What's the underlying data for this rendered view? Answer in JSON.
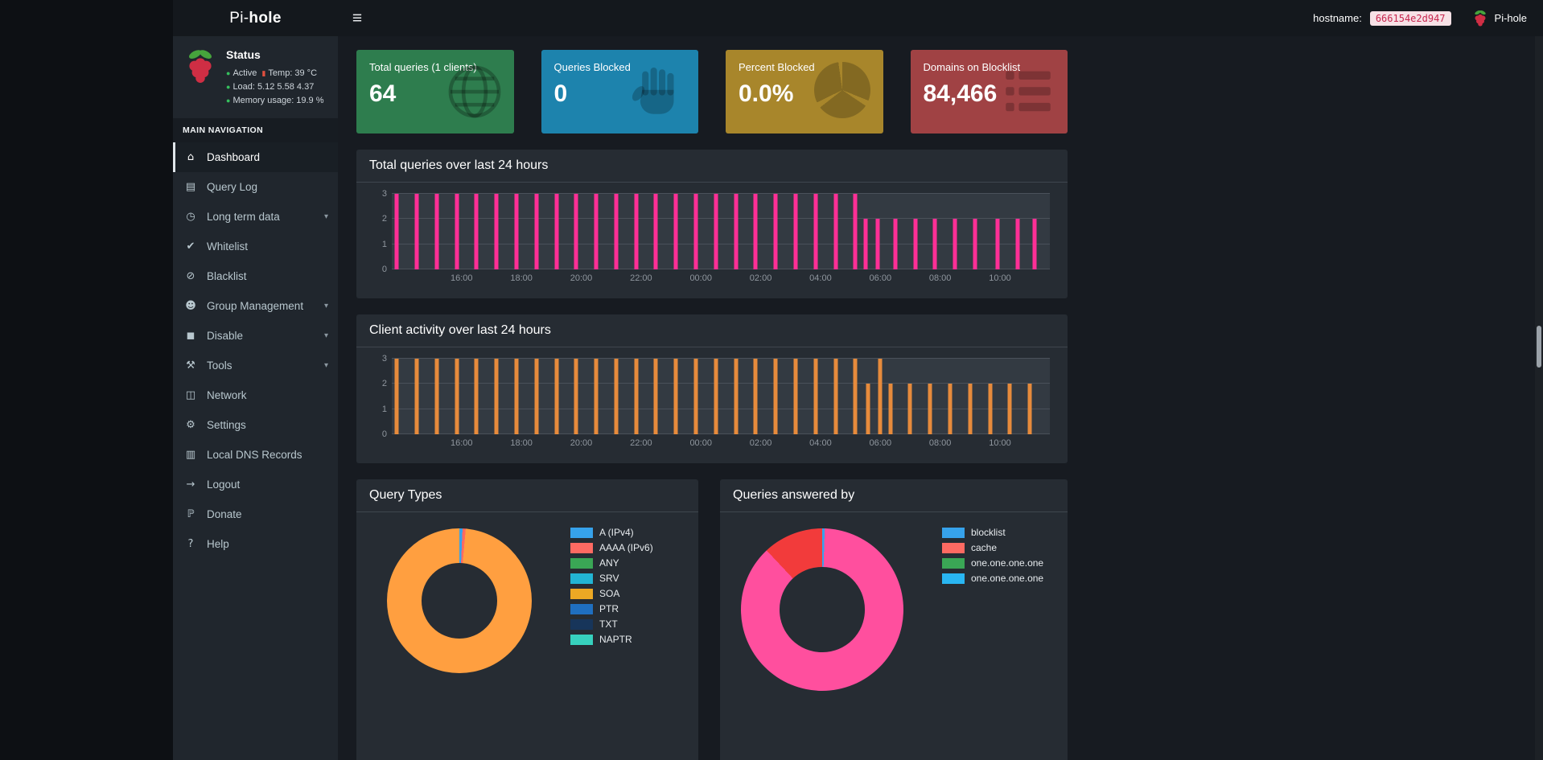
{
  "logo": {
    "prefix": "Pi-",
    "bold": "hole"
  },
  "topbar": {
    "hamburger": "≡",
    "hostname_label": "hostname:",
    "hostname_value": "666154e2d947",
    "brand": "Pi-hole"
  },
  "sidebar": {
    "status": {
      "title": "Status",
      "active_label": "Active",
      "temp_label": "Temp:",
      "temp_value": "39 °C",
      "load_label": "Load:",
      "load_value": "5.12  5.58  4.37",
      "memory_label": "Memory usage:",
      "memory_value": "19.9 %"
    },
    "nav_header": "MAIN NAVIGATION",
    "items": [
      {
        "label": "Dashboard",
        "icon": "home-icon",
        "glyph": "⌂",
        "active": true,
        "chevron": false
      },
      {
        "label": "Query Log",
        "icon": "file-text-icon",
        "glyph": "▤",
        "active": false,
        "chevron": false
      },
      {
        "label": "Long term data",
        "icon": "clock-icon",
        "glyph": "◷",
        "active": false,
        "chevron": true
      },
      {
        "label": "Whitelist",
        "icon": "check-circle-icon",
        "glyph": "✔",
        "active": false,
        "chevron": false
      },
      {
        "label": "Blacklist",
        "icon": "ban-icon",
        "glyph": "⊘",
        "active": false,
        "chevron": false
      },
      {
        "label": "Group Management",
        "icon": "users-icon",
        "glyph": "☻",
        "active": false,
        "chevron": true
      },
      {
        "label": "Disable",
        "icon": "stop-icon",
        "glyph": "◼",
        "active": false,
        "chevron": true
      },
      {
        "label": "Tools",
        "icon": "tools-icon",
        "glyph": "⚒",
        "active": false,
        "chevron": true
      },
      {
        "label": "Network",
        "icon": "network-icon",
        "glyph": "◫",
        "active": false,
        "chevron": false
      },
      {
        "label": "Settings",
        "icon": "gear-icon",
        "glyph": "⚙",
        "active": false,
        "chevron": false
      },
      {
        "label": "Local DNS Records",
        "icon": "address-book-icon",
        "glyph": "▥",
        "active": false,
        "chevron": false
      },
      {
        "label": "Logout",
        "icon": "logout-icon",
        "glyph": "→",
        "active": false,
        "chevron": false
      },
      {
        "label": "Donate",
        "icon": "paypal-icon",
        "glyph": "ℙ",
        "active": false,
        "chevron": false
      },
      {
        "label": "Help",
        "icon": "question-icon",
        "glyph": "?",
        "active": false,
        "chevron": false
      }
    ]
  },
  "cards": [
    {
      "title": "Total queries (1 clients)",
      "value": "64",
      "color": "#2e7d4e",
      "icon": "globe-icon"
    },
    {
      "title": "Queries Blocked",
      "value": "0",
      "color": "#1d83ad",
      "icon": "hand-icon"
    },
    {
      "title": "Percent Blocked",
      "value": "0.0%",
      "color": "#a8862b",
      "icon": "pie-chart-icon"
    },
    {
      "title": "Domains on Blocklist",
      "value": "84,466",
      "color": "#a04244",
      "icon": "list-icon"
    }
  ],
  "chart_data": [
    {
      "id": "total_queries",
      "type": "bar",
      "title": "Total queries over last 24 hours",
      "series_color": "#ff2f96",
      "ylim": [
        0,
        3
      ],
      "yticks": [
        0,
        1,
        2,
        3
      ],
      "x_window_minutes": 1320,
      "x_start_time": "13:40",
      "xticks": [
        {
          "label": "16:00",
          "m": 140
        },
        {
          "label": "18:00",
          "m": 260
        },
        {
          "label": "20:00",
          "m": 380
        },
        {
          "label": "22:00",
          "m": 500
        },
        {
          "label": "00:00",
          "m": 620
        },
        {
          "label": "02:00",
          "m": 740
        },
        {
          "label": "04:00",
          "m": 860
        },
        {
          "label": "06:00",
          "m": 980
        },
        {
          "label": "08:00",
          "m": 1100
        },
        {
          "label": "10:00",
          "m": 1220
        }
      ],
      "bars": [
        [
          10,
          3
        ],
        [
          50,
          3
        ],
        [
          90,
          3
        ],
        [
          130,
          3
        ],
        [
          170,
          3
        ],
        [
          210,
          3
        ],
        [
          250,
          3
        ],
        [
          290,
          3
        ],
        [
          330,
          3
        ],
        [
          370,
          3
        ],
        [
          410,
          3
        ],
        [
          450,
          3
        ],
        [
          490,
          3
        ],
        [
          530,
          3
        ],
        [
          570,
          3
        ],
        [
          610,
          3
        ],
        [
          650,
          3
        ],
        [
          690,
          3
        ],
        [
          730,
          3
        ],
        [
          770,
          3
        ],
        [
          810,
          3
        ],
        [
          850,
          3
        ],
        [
          890,
          3
        ],
        [
          930,
          3
        ],
        [
          950,
          2
        ],
        [
          975,
          2
        ],
        [
          1010,
          2
        ],
        [
          1050,
          2
        ],
        [
          1090,
          2
        ],
        [
          1130,
          2
        ],
        [
          1170,
          2
        ],
        [
          1215,
          2
        ],
        [
          1255,
          2
        ],
        [
          1290,
          2
        ]
      ]
    },
    {
      "id": "client_activity",
      "type": "bar",
      "title": "Client activity over last 24 hours",
      "series_color": "#e78b3c",
      "ylim": [
        0,
        3
      ],
      "yticks": [
        0,
        1,
        2,
        3
      ],
      "x_window_minutes": 1320,
      "x_start_time": "13:40",
      "xticks": [
        {
          "label": "16:00",
          "m": 140
        },
        {
          "label": "18:00",
          "m": 260
        },
        {
          "label": "20:00",
          "m": 380
        },
        {
          "label": "22:00",
          "m": 500
        },
        {
          "label": "00:00",
          "m": 620
        },
        {
          "label": "02:00",
          "m": 740
        },
        {
          "label": "04:00",
          "m": 860
        },
        {
          "label": "06:00",
          "m": 980
        },
        {
          "label": "08:00",
          "m": 1100
        },
        {
          "label": "10:00",
          "m": 1220
        }
      ],
      "bars": [
        [
          10,
          3
        ],
        [
          50,
          3
        ],
        [
          90,
          3
        ],
        [
          130,
          3
        ],
        [
          170,
          3
        ],
        [
          210,
          3
        ],
        [
          250,
          3
        ],
        [
          290,
          3
        ],
        [
          330,
          3
        ],
        [
          370,
          3
        ],
        [
          410,
          3
        ],
        [
          450,
          3
        ],
        [
          490,
          3
        ],
        [
          530,
          3
        ],
        [
          570,
          3
        ],
        [
          610,
          3
        ],
        [
          650,
          3
        ],
        [
          690,
          3
        ],
        [
          730,
          3
        ],
        [
          770,
          3
        ],
        [
          810,
          3
        ],
        [
          850,
          3
        ],
        [
          890,
          3
        ],
        [
          930,
          3
        ],
        [
          955,
          2
        ],
        [
          980,
          3
        ],
        [
          1000,
          2
        ],
        [
          1040,
          2
        ],
        [
          1080,
          2
        ],
        [
          1120,
          2
        ],
        [
          1160,
          2
        ],
        [
          1200,
          2
        ],
        [
          1240,
          2
        ],
        [
          1280,
          2
        ]
      ]
    },
    {
      "id": "query_types",
      "type": "donut",
      "title": "Query Types",
      "slices": [
        {
          "color": "#36a2eb",
          "pct": 0.7
        },
        {
          "color": "#fd6a62",
          "pct": 0.7
        },
        {
          "color": "#ff9f40",
          "pct": 98.6
        }
      ],
      "legend": [
        {
          "label": "A (IPv4)",
          "color": "#36a2eb"
        },
        {
          "label": "AAAA (IPv6)",
          "color": "#fd6a62"
        },
        {
          "label": "ANY",
          "color": "#3aa655"
        },
        {
          "label": "SRV",
          "color": "#22b5d3"
        },
        {
          "label": "SOA",
          "color": "#eca824"
        },
        {
          "label": "PTR",
          "color": "#1f6fc0"
        },
        {
          "label": "TXT",
          "color": "#17355a"
        },
        {
          "label": "NAPTR",
          "color": "#37d1be"
        }
      ]
    },
    {
      "id": "queries_answered",
      "type": "donut",
      "title": "Queries answered by",
      "slices": [
        {
          "color": "#36a2eb",
          "pct": 0.5
        },
        {
          "color": "#ff4f9e",
          "pct": 87.5
        },
        {
          "color": "#f23b3b",
          "pct": 12.0
        }
      ],
      "legend": [
        {
          "label": "blocklist",
          "color": "#36a2eb"
        },
        {
          "label": "cache",
          "color": "#fd6a62"
        },
        {
          "label": "one.one.one.one",
          "color": "#3aa655"
        },
        {
          "label": "one.one.one.one",
          "color": "#29b6f2"
        }
      ]
    }
  ]
}
